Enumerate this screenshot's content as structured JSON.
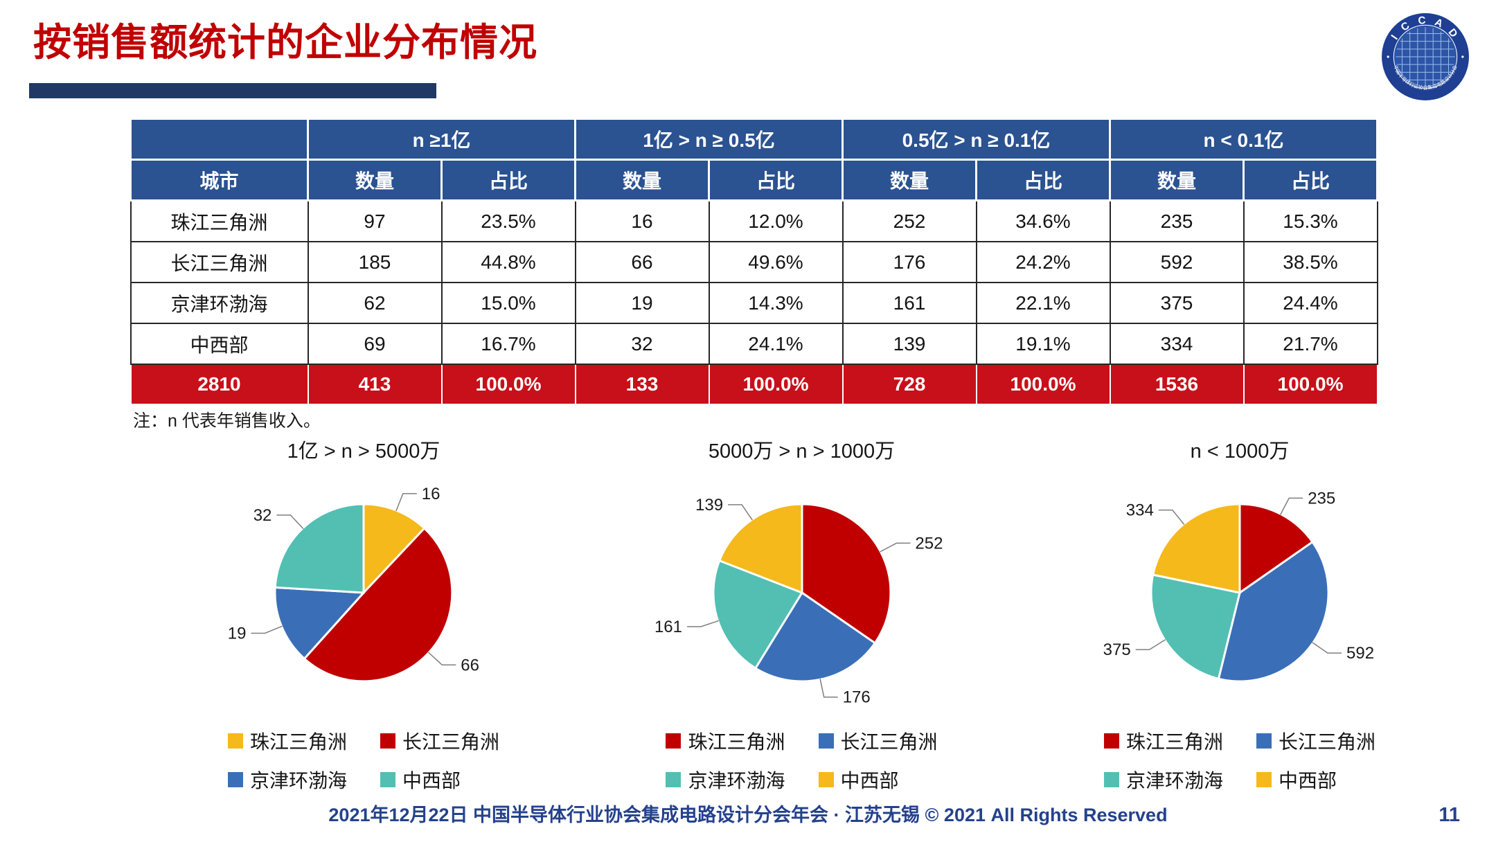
{
  "page": {
    "title": "按销售额统计的企业分布情况",
    "note": "注：n 代表年销售收入。",
    "footer": "2021年12月22日 中国半导体行业协会集成电路设计分会年会 · 江苏无锡 © 2021 All Rights Reserved",
    "page_number": "11"
  },
  "logo": {
    "letters": "I C C A D",
    "ring_text": "中国半导体行业协会集成电路设计分会"
  },
  "colors": {
    "title_red": "#C00000",
    "bar_navy": "#203864",
    "header_blue": "#2B5291",
    "total_red": "#C8101A",
    "footer_blue": "#24418C",
    "pie_yellow": "#F5B91C",
    "pie_red": "#C00000",
    "pie_blue": "#3A6FB7",
    "pie_teal": "#52BFB2"
  },
  "table": {
    "group_headers": [
      "n ≥1亿",
      "1亿 > n ≥ 0.5亿",
      "0.5亿 > n ≥ 0.1亿",
      "n < 0.1亿"
    ],
    "sub_headers": [
      "城市",
      "数量",
      "占比",
      "数量",
      "占比",
      "数量",
      "占比",
      "数量",
      "占比"
    ],
    "rows": [
      [
        "珠江三角洲",
        "97",
        "23.5%",
        "16",
        "12.0%",
        "252",
        "34.6%",
        "235",
        "15.3%"
      ],
      [
        "长江三角洲",
        "185",
        "44.8%",
        "66",
        "49.6%",
        "176",
        "24.2%",
        "592",
        "38.5%"
      ],
      [
        "京津环渤海",
        "62",
        "15.0%",
        "19",
        "14.3%",
        "161",
        "22.1%",
        "375",
        "24.4%"
      ],
      [
        "中西部",
        "69",
        "16.7%",
        "32",
        "24.1%",
        "139",
        "19.1%",
        "334",
        "21.7%"
      ]
    ],
    "total_row": [
      "2810",
      "413",
      "100.0%",
      "133",
      "100.0%",
      "728",
      "100.0%",
      "1536",
      "100.0%"
    ]
  },
  "chart_data": [
    {
      "type": "pie",
      "title": "1亿 > n > 5000万",
      "categories": [
        "珠江三角洲",
        "长江三角洲",
        "京津环渤海",
        "中西部"
      ],
      "values": [
        16,
        66,
        19,
        32
      ],
      "colors": [
        "#F5B91C",
        "#C00000",
        "#3A6FB7",
        "#52BFB2"
      ],
      "legend_position": "bottom"
    },
    {
      "type": "pie",
      "title": "5000万 > n > 1000万",
      "categories": [
        "珠江三角洲",
        "长江三角洲",
        "京津环渤海",
        "中西部"
      ],
      "values": [
        252,
        176,
        161,
        139
      ],
      "colors": [
        "#C00000",
        "#3A6FB7",
        "#52BFB2",
        "#F5B91C"
      ],
      "legend_position": "bottom"
    },
    {
      "type": "pie",
      "title": "n < 1000万",
      "categories": [
        "珠江三角洲",
        "长江三角洲",
        "京津环渤海",
        "中西部"
      ],
      "values": [
        235,
        592,
        375,
        334
      ],
      "colors": [
        "#C00000",
        "#3A6FB7",
        "#52BFB2",
        "#F5B91C"
      ],
      "legend_position": "bottom"
    }
  ]
}
